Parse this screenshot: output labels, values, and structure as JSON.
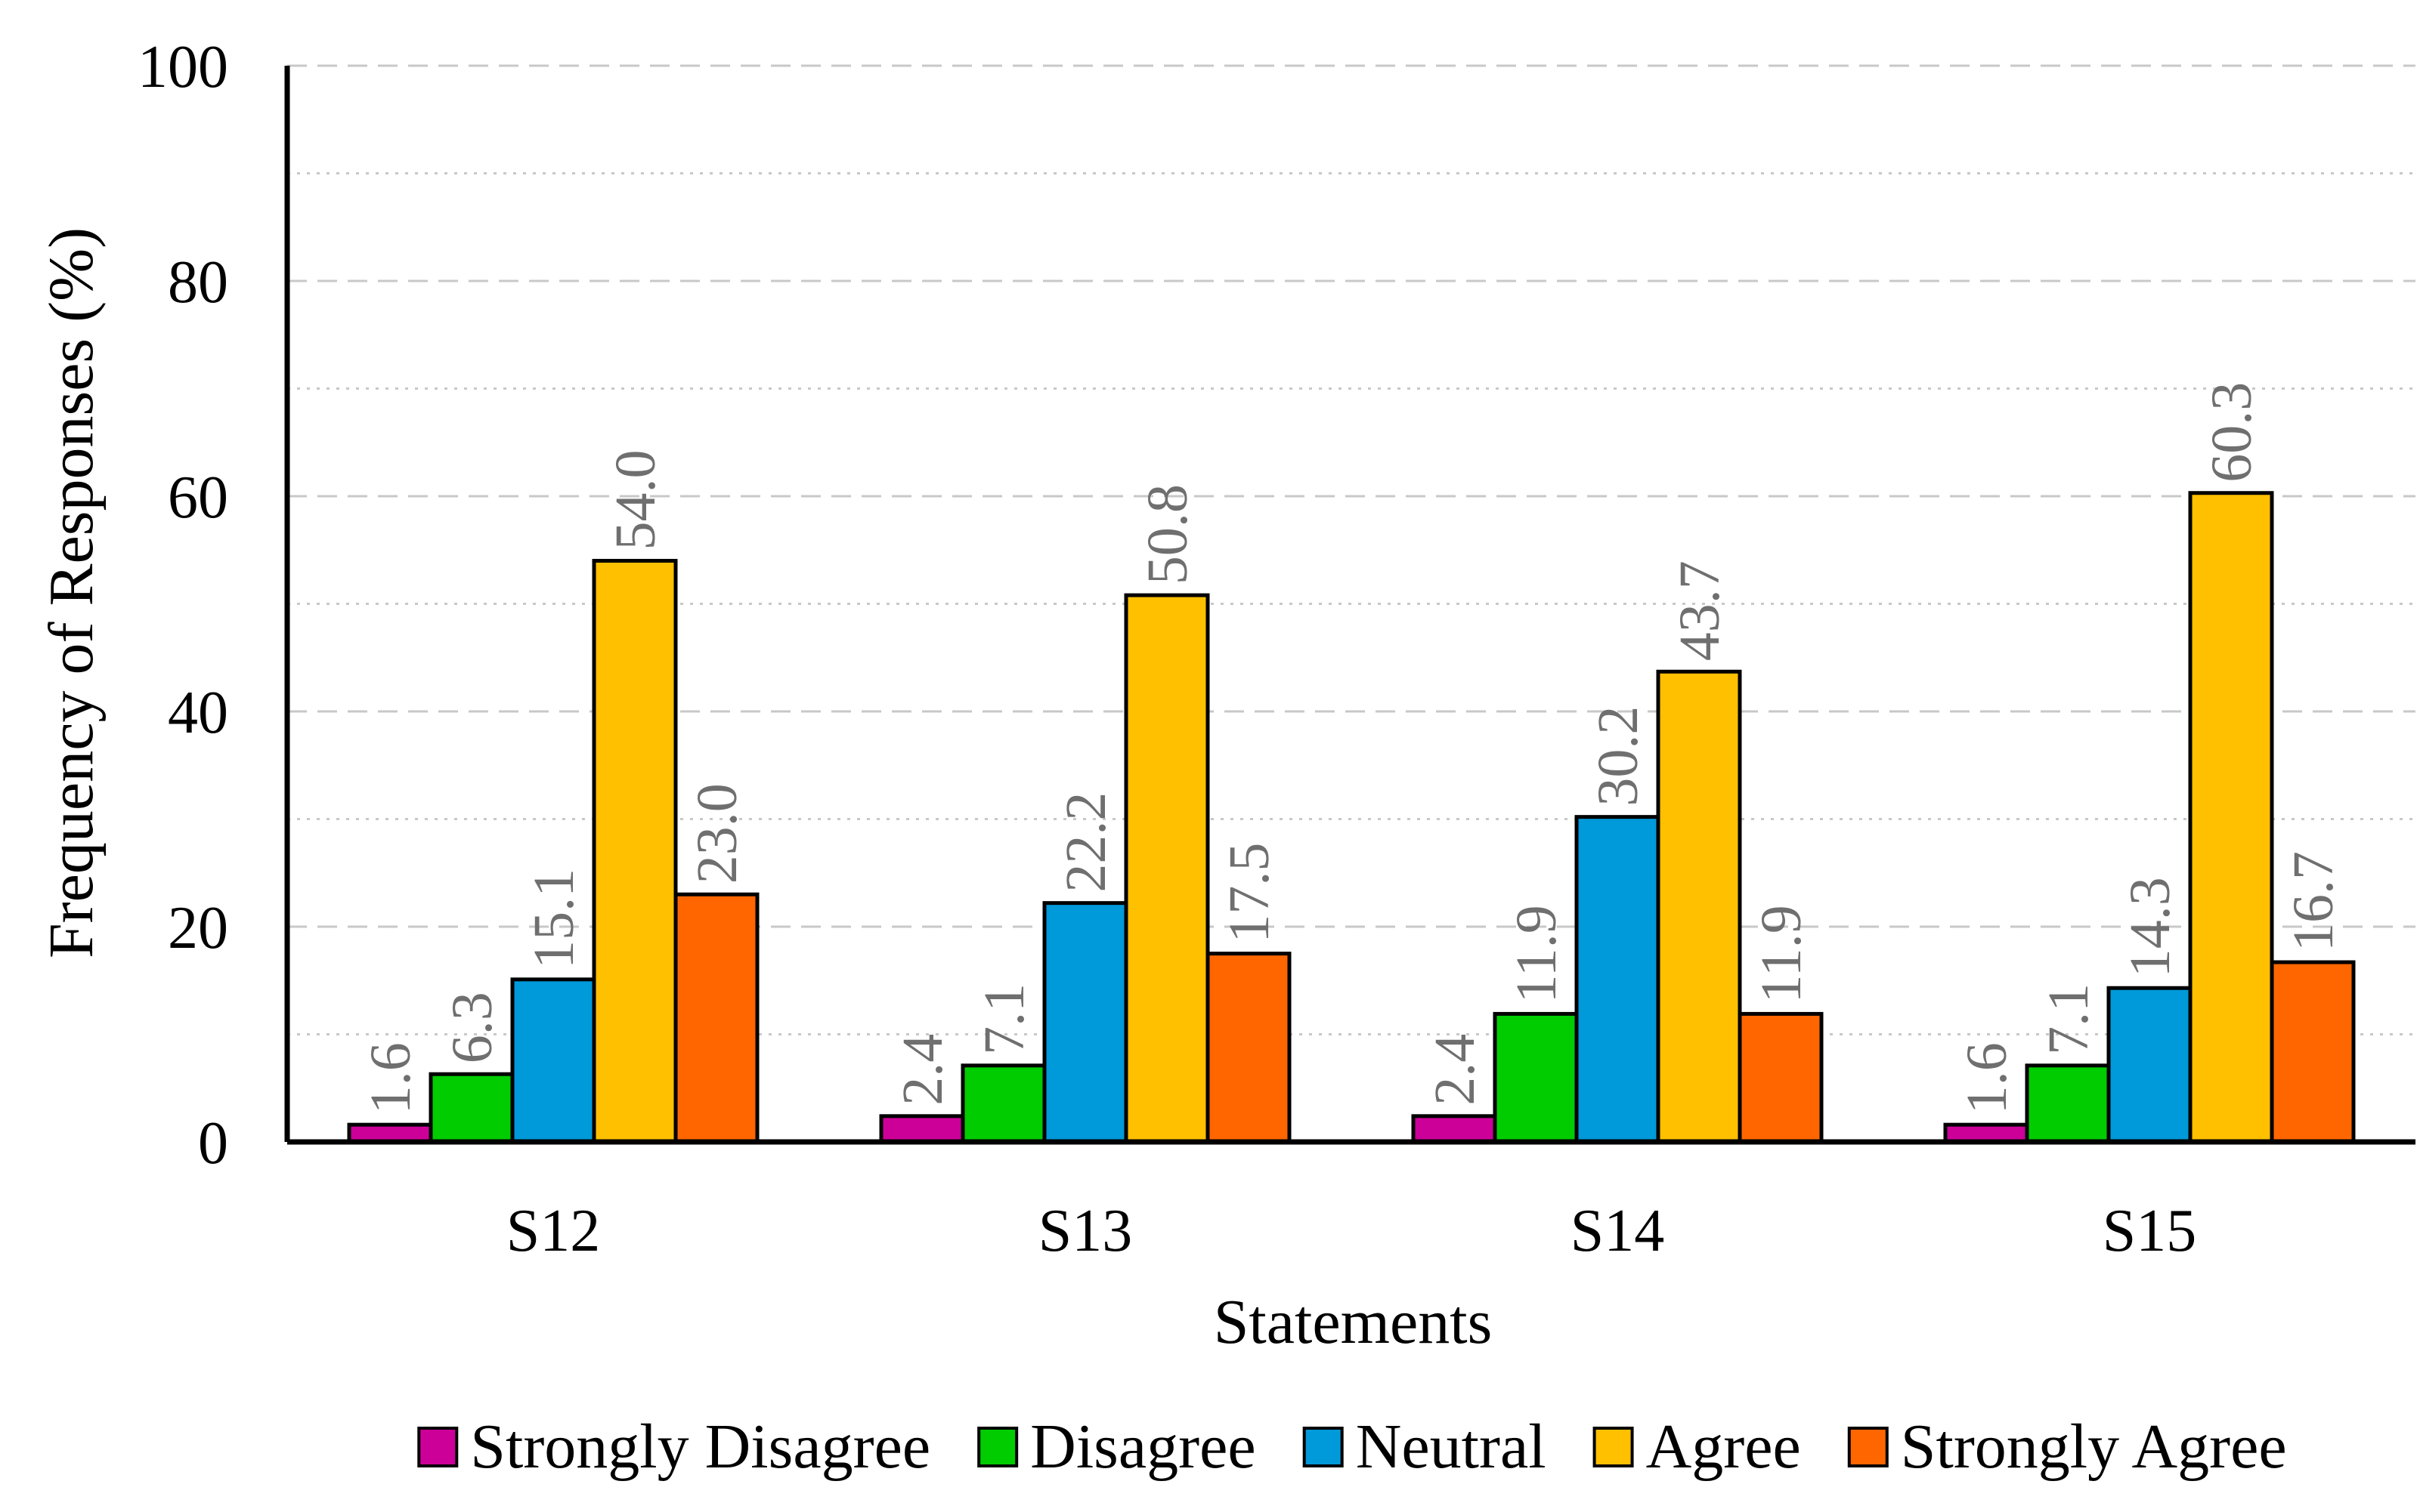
{
  "chart_data": {
    "type": "bar",
    "title": "",
    "xlabel": "Statements",
    "ylabel": "Frequency of Responses (%)",
    "ylim": [
      0,
      100
    ],
    "yticks": [
      0,
      20,
      40,
      60,
      80,
      100
    ],
    "grid": true,
    "legend_position": "bottom",
    "categories": [
      "S12",
      "S13",
      "S14",
      "S15"
    ],
    "series": [
      {
        "name": "Strongly Disagree",
        "color": "#CC0099",
        "values": [
          1.6,
          2.4,
          2.4,
          1.6
        ],
        "labels": [
          "1.6",
          "2.4",
          "2.4",
          "1.6"
        ]
      },
      {
        "name": "Disagree",
        "color": "#00CC00",
        "values": [
          6.3,
          7.1,
          11.9,
          7.1
        ],
        "labels": [
          "6.3",
          "7.1",
          "11.9",
          "7.1"
        ]
      },
      {
        "name": "Neutral",
        "color": "#0099D9",
        "values": [
          15.1,
          22.2,
          30.2,
          14.3
        ],
        "labels": [
          "15.1",
          "22.2",
          "30.2",
          "14.3"
        ]
      },
      {
        "name": "Agree",
        "color": "#FFC000",
        "values": [
          54.0,
          50.8,
          43.7,
          60.3
        ],
        "labels": [
          "54.0",
          "50.8",
          "43.7",
          "60.3"
        ]
      },
      {
        "name": "Strongly Agree",
        "color": "#FF6600",
        "values": [
          23.0,
          17.5,
          11.9,
          16.7
        ],
        "labels": [
          "23.0",
          "17.5",
          "11.9",
          "16.7"
        ]
      }
    ]
  }
}
